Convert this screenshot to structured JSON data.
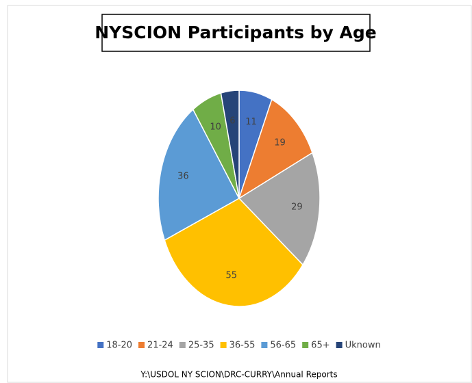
{
  "chart_data": {
    "type": "pie",
    "title": "NYSCION Participants by Age",
    "categories": [
      "18-20",
      "21-24",
      "25-35",
      "36-55",
      "56-65",
      "65+",
      "Uknown"
    ],
    "values": [
      11,
      19,
      29,
      55,
      36,
      10,
      6
    ],
    "colors": [
      "#4472c4",
      "#ed7d31",
      "#a5a5a5",
      "#ffc000",
      "#5b9bd5",
      "#70ad47",
      "#264478"
    ],
    "legend": "bottom",
    "footer": "Y:\\USDOL NY SCION\\DRC-CURRY\\Annual Reports"
  }
}
